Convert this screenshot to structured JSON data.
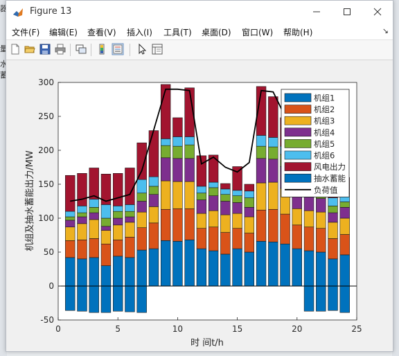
{
  "window": {
    "title": "Figure 13"
  },
  "menu": [
    "文件(F)",
    "编辑(E)",
    "查看(V)",
    "插入(I)",
    "工具(T)",
    "桌面(D)",
    "窗口(W)",
    "帮助(H)"
  ],
  "toolbar_icons": [
    "new-figure-icon",
    "open-file-icon",
    "save-icon",
    "print-icon",
    "link-plot-icon",
    "colorbar-icon",
    "legend-icon",
    "edit-plot-icon",
    "property-inspector-icon"
  ],
  "background": {
    "left_fragments": [
      "器",
      "量",
      "水蓄"
    ]
  },
  "chart_data": {
    "type": "bar",
    "stacked": true,
    "xlabel": "时 间t/h",
    "ylabel": "机组及抽水蓄能出力/MW",
    "xlim": [
      0,
      25
    ],
    "ylim": [
      -50,
      300
    ],
    "xticks": [
      0,
      5,
      10,
      15,
      20,
      25
    ],
    "yticks": [
      -50,
      0,
      50,
      100,
      150,
      200,
      250,
      300
    ],
    "grid": false,
    "legend_position": "top-right",
    "x": [
      1,
      2,
      3,
      4,
      5,
      6,
      7,
      8,
      9,
      10,
      11,
      12,
      13,
      14,
      15,
      16,
      17,
      18,
      19,
      20,
      21,
      22,
      23,
      24
    ],
    "series": [
      {
        "name": "机组1",
        "color": "#0072BD",
        "values": [
          42,
          40,
          42,
          30,
          44,
          42,
          53,
          55,
          67,
          66,
          68,
          55,
          52,
          47,
          55,
          50,
          66,
          65,
          62,
          55,
          52,
          50,
          40,
          46
        ]
      },
      {
        "name": "机组2",
        "color": "#D95319",
        "values": [
          25,
          28,
          28,
          32,
          24,
          30,
          33,
          38,
          46,
          48,
          46,
          30,
          35,
          32,
          30,
          28,
          46,
          48,
          44,
          35,
          35,
          35,
          30,
          30
        ]
      },
      {
        "name": "机组3",
        "color": "#EDB120",
        "values": [
          20,
          24,
          28,
          20,
          22,
          22,
          23,
          24,
          42,
          40,
          40,
          22,
          24,
          26,
          22,
          24,
          40,
          40,
          38,
          24,
          24,
          24,
          24,
          24
        ]
      },
      {
        "name": "机组4",
        "color": "#7E2F8E",
        "values": [
          10,
          10,
          10,
          6,
          10,
          8,
          16,
          18,
          34,
          34,
          34,
          20,
          22,
          20,
          16,
          14,
          36,
          34,
          32,
          22,
          20,
          20,
          14,
          16
        ]
      },
      {
        "name": "机组5",
        "color": "#77AC30",
        "values": [
          5,
          6,
          8,
          12,
          10,
          8,
          12,
          12,
          18,
          18,
          20,
          10,
          12,
          10,
          10,
          14,
          18,
          18,
          18,
          10,
          10,
          10,
          10,
          8
        ]
      },
      {
        "name": "机组6",
        "color": "#4DBEEE",
        "values": [
          8,
          10,
          12,
          20,
          8,
          10,
          20,
          14,
          10,
          14,
          12,
          10,
          8,
          8,
          8,
          10,
          16,
          14,
          12,
          12,
          12,
          12,
          12,
          12
        ]
      },
      {
        "name": "风电出力",
        "color": "#A2142F",
        "values": [
          53,
          48,
          46,
          45,
          48,
          54,
          54,
          68,
          80,
          28,
          72,
          45,
          40,
          8,
          35,
          10,
          72,
          60,
          42,
          34,
          30,
          28,
          15,
          24
        ]
      },
      {
        "name": "抽水蓄能",
        "color": "#0072BD",
        "values": [
          -36,
          -37,
          -39,
          -39,
          -37,
          -38,
          -39,
          0,
          0,
          0,
          0,
          0,
          0,
          0,
          0,
          0,
          0,
          0,
          0,
          0,
          -37,
          -37,
          -36,
          -39
        ]
      }
    ],
    "load_line": {
      "name": "负荷值",
      "color": "#000000",
      "values": [
        125,
        128,
        133,
        125,
        130,
        135,
        170,
        230,
        290,
        290,
        288,
        180,
        190,
        175,
        168,
        182,
        288,
        286,
        250,
        200,
        155,
        150,
        140,
        142
      ]
    }
  }
}
